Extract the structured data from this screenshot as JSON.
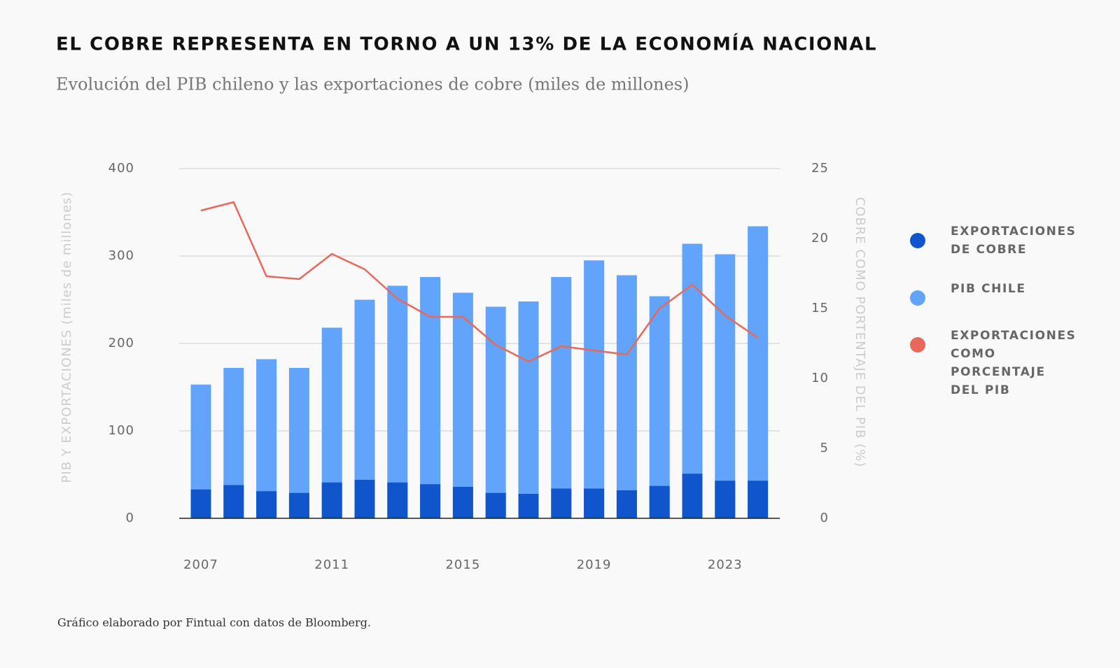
{
  "chart_data": {
    "type": "bar",
    "title": "EL COBRE REPRESENTA EN TORNO A UN 13% DE LA ECONOMÍA NACIONAL",
    "subtitle": "Evolución del PIB chileno y las exportaciones de cobre (miles de millones)",
    "footnote": "Gráfico elaborado por Fintual con datos de Bloomberg.",
    "ylabel": "PIB Y EXPORTACIONES (miles de millones)",
    "y2label": "COBRE COMO PORTENTAJE DEL PIB (%)",
    "categories": [
      "2007",
      null,
      null,
      null,
      "2011",
      null,
      null,
      null,
      "2015",
      null,
      null,
      null,
      "2019",
      null,
      null,
      null,
      "2023",
      null
    ],
    "ylim": [
      0,
      400
    ],
    "yticks": [
      0,
      100,
      200,
      300,
      400
    ],
    "y2lim": [
      0,
      25
    ],
    "y2ticks": [
      0,
      5,
      10,
      15,
      20,
      25
    ],
    "grid": true,
    "legend": "right",
    "series": [
      {
        "name": "EXPORTACIONES DE COBRE",
        "type": "bar",
        "color": "#1155cc",
        "values": [
          33,
          38,
          31,
          29,
          41,
          44,
          41,
          39,
          36,
          29,
          28,
          34,
          34,
          32,
          37,
          51,
          43,
          43
        ]
      },
      {
        "name": "PIB CHILE",
        "type": "bar",
        "color": "#62a4fb",
        "values": [
          153,
          172,
          182,
          172,
          218,
          250,
          266,
          276,
          258,
          242,
          248,
          276,
          295,
          278,
          254,
          314,
          302,
          334
        ]
      },
      {
        "name": "EXPORTACIONES COMO PORCENTAJE DEL PIB",
        "type": "line",
        "axis": "y2",
        "color": "#e8695c",
        "values": [
          22,
          22.6,
          17.3,
          17.1,
          18.9,
          17.8,
          15.7,
          14.4,
          14.4,
          12.4,
          11.2,
          12.3,
          12.0,
          11.7,
          15.0,
          16.7,
          14.5,
          12.9
        ]
      }
    ]
  }
}
